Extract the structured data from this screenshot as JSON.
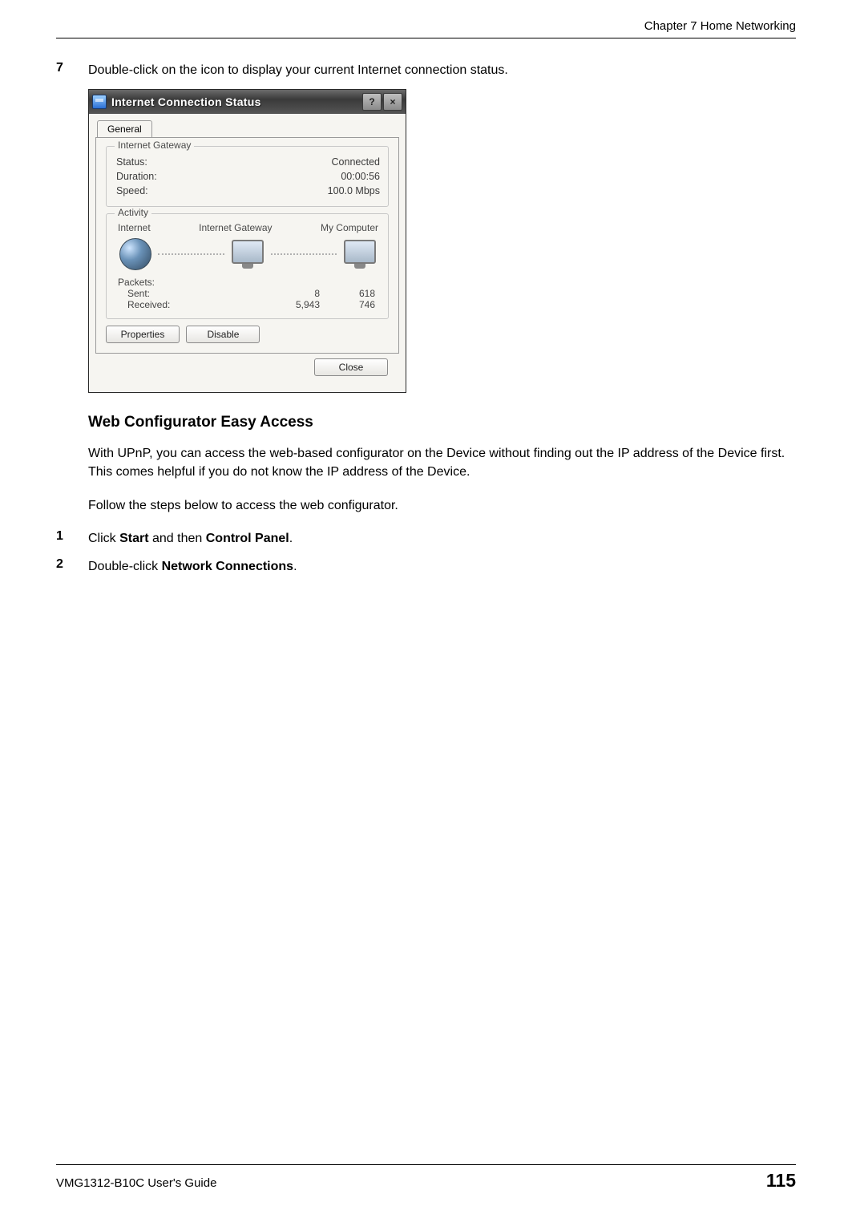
{
  "header": {
    "chapter": "Chapter 7 Home Networking"
  },
  "step7": {
    "num": "7",
    "text": "Double-click on the icon to display your current Internet connection status."
  },
  "dialog": {
    "title": "Internet Connection Status",
    "help_symbol": "?",
    "close_symbol": "×",
    "tab": "General",
    "gateway_group": {
      "title": "Internet Gateway",
      "status_label": "Status:",
      "status_value": "Connected",
      "duration_label": "Duration:",
      "duration_value": "00:00:56",
      "speed_label": "Speed:",
      "speed_value": "100.0 Mbps"
    },
    "activity_group": {
      "title": "Activity",
      "col_internet": "Internet",
      "col_gateway": "Internet Gateway",
      "col_mycomputer": "My Computer",
      "packets_label": "Packets:",
      "sent_label": "Sent:",
      "received_label": "Received:",
      "gw_sent": "8",
      "gw_received": "5,943",
      "pc_sent": "618",
      "pc_received": "746"
    },
    "buttons": {
      "properties": "Properties",
      "disable": "Disable",
      "close": "Close"
    }
  },
  "section": {
    "heading": "Web Configurator Easy Access",
    "para1": "With UPnP, you can access the web-based configurator on the Device without finding out the IP address of the Device first. This comes helpful if you do not know the IP address of the Device.",
    "para2": "Follow the steps below to access the web configurator."
  },
  "step1": {
    "num": "1",
    "pre": "Click ",
    "bold1": "Start",
    "mid": " and then ",
    "bold2": "Control Panel",
    "post": "."
  },
  "step2": {
    "num": "2",
    "pre": "Double-click ",
    "bold1": "Network Connections",
    "post": "."
  },
  "footer": {
    "guide": "VMG1312-B10C User's Guide",
    "pagenum": "115"
  }
}
